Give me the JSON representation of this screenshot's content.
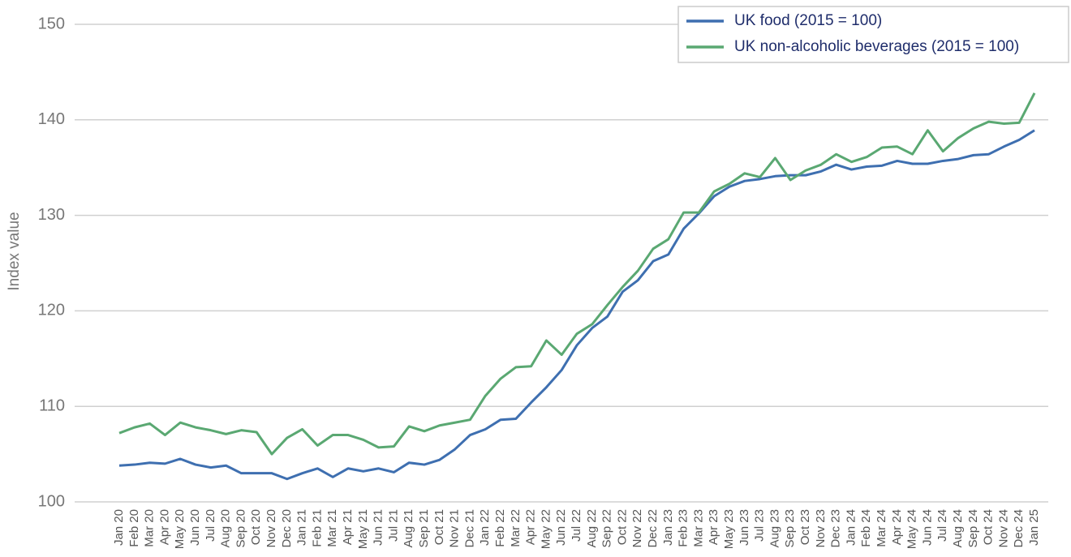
{
  "chart_data": {
    "type": "line",
    "y_label": "Index value",
    "categories": [
      "Jan 20",
      "Feb 20",
      "Mar 20",
      "Apr 20",
      "May 20",
      "Jun 20",
      "Jul 20",
      "Aug 20",
      "Sep 20",
      "Oct 20",
      "Nov 20",
      "Dec 20",
      "Jan 21",
      "Feb 21",
      "Mar 21",
      "Apr 21",
      "May 21",
      "Jun 21",
      "Jul 21",
      "Aug 21",
      "Sep 21",
      "Oct 21",
      "Nov 21",
      "Dec 21",
      "Jan 22",
      "Feb 22",
      "Mar 22",
      "Apr 22",
      "May 22",
      "Jun 22",
      "Jul 22",
      "Aug 22",
      "Sep 22",
      "Oct 22",
      "Nov 22",
      "Dec 22",
      "Jan 23",
      "Feb 23",
      "Mar 23",
      "Apr 23",
      "May 23",
      "Jun 23",
      "Jul 23",
      "Aug 23",
      "Sep 23",
      "Oct 23",
      "Nov 23",
      "Dec 23",
      "Jan 24",
      "Feb 24",
      "Mar 24",
      "Apr 24",
      "May 24",
      "Jun 24",
      "Jul 24",
      "Aug 24",
      "Sep 24",
      "Oct 24",
      "Nov 24",
      "Dec 24",
      "Jan 25"
    ],
    "series": [
      {
        "name": "UK food (2015 = 100)",
        "color": "#3e6fb0",
        "values": [
          103.8,
          103.9,
          104.1,
          104.0,
          104.5,
          103.9,
          103.6,
          103.8,
          103.0,
          103.0,
          103.0,
          102.4,
          103.0,
          103.5,
          102.6,
          103.5,
          103.2,
          103.5,
          103.1,
          104.1,
          103.9,
          104.4,
          105.5,
          107.0,
          107.6,
          108.6,
          108.7,
          110.4,
          112.0,
          113.8,
          116.4,
          118.2,
          119.4,
          122.0,
          123.2,
          125.2,
          125.9,
          128.6,
          130.2,
          132.0,
          133.0,
          133.6,
          133.8,
          134.1,
          134.2,
          134.2,
          134.6,
          135.3,
          134.8,
          135.1,
          135.2,
          135.7,
          135.4,
          135.4,
          135.7,
          135.9,
          136.3,
          136.4,
          137.2,
          137.9,
          138.9
        ]
      },
      {
        "name": "UK non-alcoholic beverages (2015 = 100)",
        "color": "#5aa872",
        "values": [
          107.2,
          107.8,
          108.2,
          107.0,
          108.3,
          107.8,
          107.5,
          107.1,
          107.5,
          107.3,
          105.0,
          106.7,
          107.6,
          105.9,
          107.0,
          107.0,
          106.5,
          105.7,
          105.8,
          107.9,
          107.4,
          108.0,
          108.3,
          108.6,
          111.1,
          112.9,
          114.1,
          114.2,
          116.9,
          115.4,
          117.6,
          118.6,
          120.6,
          122.5,
          124.2,
          126.5,
          127.5,
          130.3,
          130.3,
          132.5,
          133.3,
          134.4,
          134.0,
          136.0,
          133.7,
          134.7,
          135.3,
          136.4,
          135.6,
          136.1,
          137.1,
          137.2,
          136.4,
          138.9,
          136.7,
          138.1,
          139.1,
          139.8,
          139.6,
          139.7,
          142.8
        ]
      }
    ],
    "ylim": [
      100,
      150
    ],
    "yticks": [
      100,
      110,
      120,
      130,
      140,
      150
    ],
    "grid": true,
    "legend": "upper right"
  }
}
